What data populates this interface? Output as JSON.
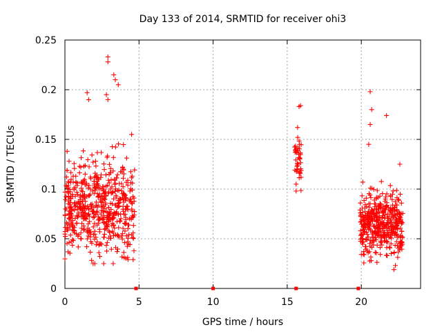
{
  "chart_data": {
    "type": "scatter",
    "title": "Day 133 of 2014, SRMTID for receiver ohi3",
    "xlabel": "GPS time / hours",
    "ylabel": "SRMTID / TECUs",
    "xlim": [
      0,
      24
    ],
    "ylim": [
      0,
      0.25
    ],
    "xticks": [
      0,
      5,
      10,
      15,
      20
    ],
    "xtick_labels": [
      "0",
      "5",
      "10",
      "15",
      "20"
    ],
    "yticks": [
      0,
      0.05,
      0.1,
      0.15,
      0.2,
      0.25
    ],
    "ytick_labels": [
      "0",
      "0.05",
      "0.1",
      "0.15",
      "0.2",
      "0.25"
    ],
    "grid": true,
    "marker": "+",
    "series_color": "#ff0000",
    "clusters": [
      {
        "x_range": [
          0.0,
          4.7
        ],
        "y_range": [
          0.025,
          0.235
        ],
        "typical_range": [
          0.03,
          0.13
        ],
        "approx_count": 600
      },
      {
        "x_range": [
          15.5,
          15.95
        ],
        "y_range": [
          0.095,
          0.185
        ],
        "typical_range": [
          0.1,
          0.16
        ],
        "approx_count": 40
      },
      {
        "x_range": [
          19.9,
          22.8
        ],
        "y_range": [
          0.02,
          0.2
        ],
        "typical_range": [
          0.03,
          0.1
        ],
        "approx_count": 450
      }
    ],
    "zero_markers_x": [
      4.8,
      10.0,
      15.6,
      19.8
    ],
    "notable_points": [
      {
        "x": 2.9,
        "y": 0.233
      },
      {
        "x": 2.9,
        "y": 0.228
      },
      {
        "x": 3.3,
        "y": 0.215
      },
      {
        "x": 3.4,
        "y": 0.21
      },
      {
        "x": 3.6,
        "y": 0.205
      },
      {
        "x": 1.5,
        "y": 0.197
      },
      {
        "x": 1.6,
        "y": 0.19
      },
      {
        "x": 2.8,
        "y": 0.195
      },
      {
        "x": 2.9,
        "y": 0.19
      },
      {
        "x": 4.5,
        "y": 0.155
      },
      {
        "x": 15.9,
        "y": 0.184
      },
      {
        "x": 15.8,
        "y": 0.183
      },
      {
        "x": 15.7,
        "y": 0.162
      },
      {
        "x": 15.6,
        "y": 0.138
      },
      {
        "x": 15.7,
        "y": 0.12
      },
      {
        "x": 15.6,
        "y": 0.105
      },
      {
        "x": 15.6,
        "y": 0.098
      },
      {
        "x": 20.6,
        "y": 0.198
      },
      {
        "x": 20.7,
        "y": 0.18
      },
      {
        "x": 20.6,
        "y": 0.165
      },
      {
        "x": 21.7,
        "y": 0.174
      },
      {
        "x": 20.5,
        "y": 0.145
      },
      {
        "x": 22.6,
        "y": 0.125
      },
      {
        "x": 22.2,
        "y": 0.019
      },
      {
        "x": 20.1,
        "y": 0.107
      }
    ]
  }
}
